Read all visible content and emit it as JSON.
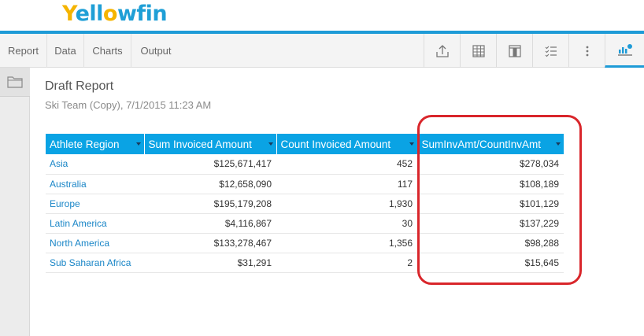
{
  "app": {
    "logo_prefix": "Y",
    "logo_mid": "ell",
    "logo_o": "o",
    "logo_end": "wfin"
  },
  "toolbar": {
    "tabs": [
      {
        "label": "Report"
      },
      {
        "label": "Data"
      },
      {
        "label": "Charts"
      },
      {
        "label": "Output"
      }
    ],
    "icons": [
      "export-icon",
      "table-icon",
      "layout-icon",
      "checklist-icon",
      "more-icon",
      "report-settings-icon"
    ]
  },
  "report": {
    "title": "Draft Report",
    "subtitle": "Ski Team (Copy), 7/1/2015 11:23 AM"
  },
  "table": {
    "columns": [
      {
        "label": "Athlete Region"
      },
      {
        "label": "Sum Invoiced Amount"
      },
      {
        "label": "Count Invoiced Amount"
      },
      {
        "label": "SumInvAmt/CountInvAmt"
      }
    ],
    "rows": [
      {
        "region": "Asia",
        "sum": "$125,671,417",
        "count": "452",
        "ratio": "$278,034"
      },
      {
        "region": "Australia",
        "sum": "$12,658,090",
        "count": "117",
        "ratio": "$108,189"
      },
      {
        "region": "Europe",
        "sum": "$195,179,208",
        "count": "1,930",
        "ratio": "$101,129"
      },
      {
        "region": "Latin America",
        "sum": "$4,116,867",
        "count": "30",
        "ratio": "$137,229"
      },
      {
        "region": "North America",
        "sum": "$133,278,467",
        "count": "1,356",
        "ratio": "$98,288"
      },
      {
        "region": "Sub Saharan Africa",
        "sum": "$31,291",
        "count": "2",
        "ratio": "$15,645"
      }
    ]
  },
  "colors": {
    "accent": "#1e9bd7",
    "header_bg": "#0aa3e4",
    "highlight": "#d9262b"
  }
}
